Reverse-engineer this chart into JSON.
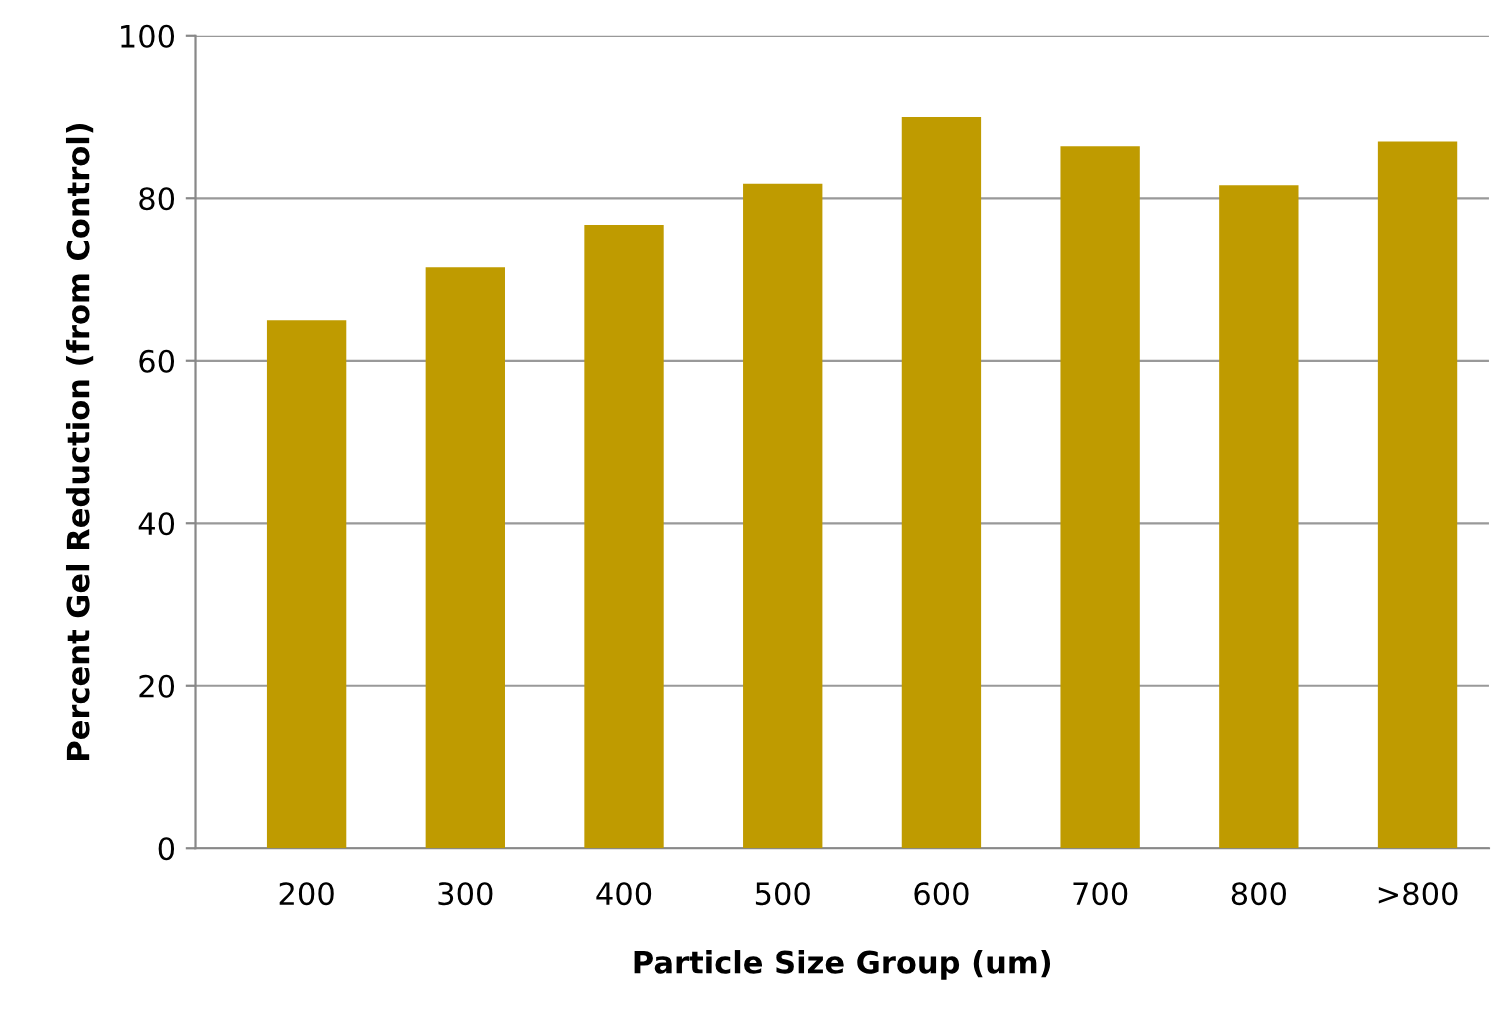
{
  "chart_data": {
    "type": "bar",
    "xlabel": "Particle Size Group (um)",
    "ylabel": "Percent Gel Reduction (from Control)",
    "categories": [
      "200",
      "300",
      "400",
      "500",
      "600",
      "700",
      "800",
      ">800"
    ],
    "values": [
      65,
      71.5,
      76.7,
      81.8,
      90,
      86.4,
      81.6,
      87
    ],
    "color": "#bf9b00",
    "ylim": [
      0,
      100
    ],
    "yticks": [
      0,
      20,
      40,
      60,
      80,
      100
    ],
    "grid": "y"
  }
}
